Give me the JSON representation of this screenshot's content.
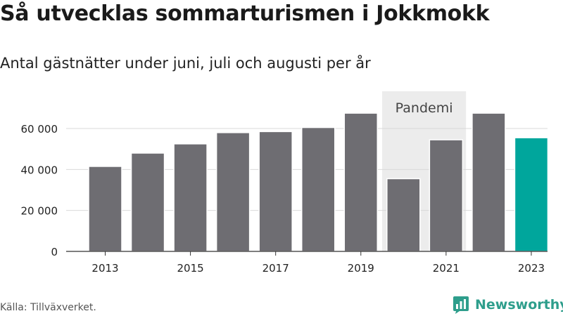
{
  "header": {
    "title": "Så utvecklas sommarturismen i Jokkmokk",
    "subtitle": "Antal gästnätter under juni, juli och augusti per år"
  },
  "footer": {
    "source": "Källa: Tillväxverket.",
    "brand": "Newsworthy"
  },
  "chart_data": {
    "type": "bar",
    "categories": [
      "2013",
      "2014",
      "2015",
      "2016",
      "2017",
      "2018",
      "2019",
      "2020",
      "2021",
      "2022",
      "2023"
    ],
    "values": [
      41500,
      48000,
      52500,
      58000,
      58500,
      60500,
      67500,
      35500,
      54500,
      67500,
      55500
    ],
    "x_tick_labels": [
      "2013",
      "",
      "2015",
      "",
      "2017",
      "",
      "2019",
      "",
      "2021",
      "",
      "2023"
    ],
    "y_ticks": [
      0,
      20000,
      40000,
      60000
    ],
    "y_tick_labels": [
      "0",
      "20 000",
      "40 000",
      "60 000"
    ],
    "ylim": [
      0,
      78000
    ],
    "grid": true,
    "annotation": {
      "text": "Pandemi",
      "from": "2020",
      "to": "2021"
    },
    "colors": {
      "bar": "#6e6d72",
      "highlight": "#00a69c",
      "band": "#ececec",
      "grid": "#d9d9d9",
      "axis": "#333333"
    },
    "highlight_category": "2023"
  }
}
